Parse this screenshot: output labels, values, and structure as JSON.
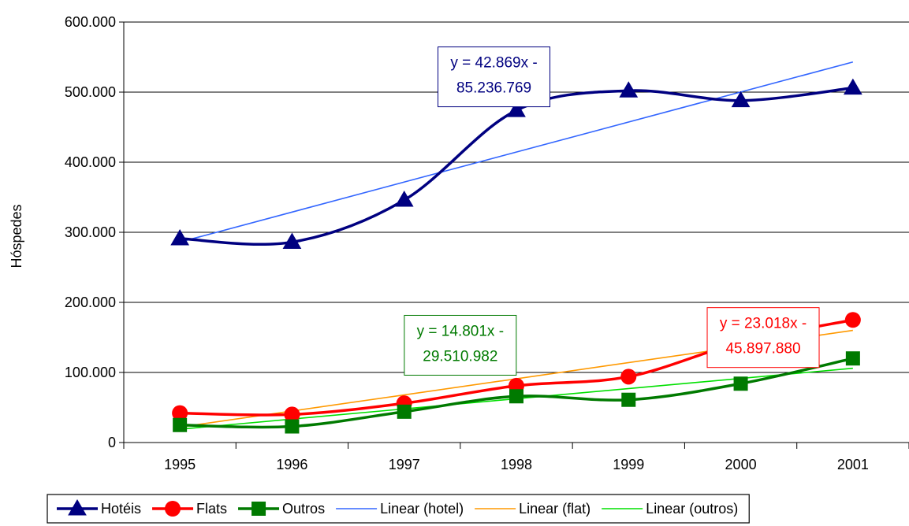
{
  "chart_data": {
    "type": "line",
    "title": "",
    "xlabel": "",
    "ylabel": "Hóspedes",
    "categories": [
      "1995",
      "1996",
      "1997",
      "1998",
      "1999",
      "2000",
      "2001"
    ],
    "ylim": [
      0,
      600000
    ],
    "yticks": [
      0,
      100000,
      200000,
      300000,
      400000,
      500000,
      600000
    ],
    "ytick_labels": [
      "0",
      "100.000",
      "200.000",
      "300.000",
      "400.000",
      "500.000",
      "600.000"
    ],
    "grid": "horizontal",
    "legend_position": "bottom",
    "series": [
      {
        "name": "Hotéis",
        "color": "#000080",
        "marker": "triangle",
        "values": [
          291000,
          286000,
          346000,
          474000,
          502000,
          488000,
          506000
        ]
      },
      {
        "name": "Flats",
        "color": "#ff0000",
        "marker": "circle",
        "values": [
          42000,
          40000,
          56000,
          81000,
          94000,
          143000,
          175000
        ]
      },
      {
        "name": "Outros",
        "color": "#007a00",
        "marker": "square",
        "values": [
          25000,
          23000,
          44000,
          66000,
          61000,
          84000,
          120000
        ]
      }
    ],
    "trendlines": [
      {
        "name": "Linear (hotel)",
        "color": "#3366ff",
        "start": 286000,
        "end": 543000,
        "equation": [
          "y = 42.869x -",
          "85.236.769"
        ],
        "equation_color": "#000080",
        "equation_at": [
          1997.8,
          560000
        ]
      },
      {
        "name": "Linear (flat)",
        "color": "#ff9900",
        "start": 22000,
        "end": 160000,
        "equation": [
          "y = 23.018x -",
          "45.897.880"
        ],
        "equation_color": "#ff0000",
        "equation_at": [
          2000.2,
          188000
        ]
      },
      {
        "name": "Linear (outros)",
        "color": "#00e000",
        "start": 19000,
        "end": 106000,
        "equation": [
          "y = 14.801x -",
          "29.510.982"
        ],
        "equation_color": "#007a00",
        "equation_at": [
          1997.5,
          177000
        ]
      }
    ]
  }
}
